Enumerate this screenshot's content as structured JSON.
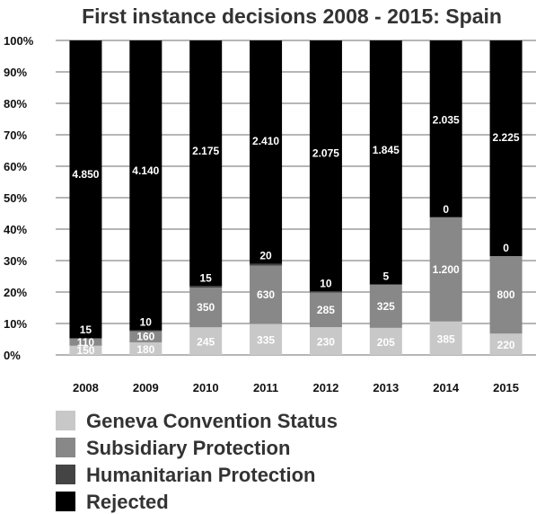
{
  "chart_data": {
    "type": "bar",
    "stacked": true,
    "normalized": true,
    "title": "First instance decisions 2008 - 2015: Spain",
    "xlabel": "",
    "ylabel": "",
    "ylim": [
      0,
      100
    ],
    "yticks": [
      "0%",
      "10%",
      "20%",
      "30%",
      "40%",
      "50%",
      "60%",
      "70%",
      "80%",
      "90%",
      "100%"
    ],
    "categories": [
      "2008",
      "2009",
      "2010",
      "2011",
      "2012",
      "2013",
      "2014",
      "2015"
    ],
    "grid": true,
    "legend_position": "bottom",
    "series": [
      {
        "name": "Geneva Convention Status",
        "color": "#c8c8c8",
        "values": [
          150,
          180,
          245,
          335,
          230,
          205,
          385,
          220
        ],
        "labels": [
          "150",
          "180",
          "245",
          "335",
          "230",
          "205",
          "385",
          "220"
        ]
      },
      {
        "name": "Subsidiary Protection",
        "color": "#888888",
        "values": [
          110,
          160,
          350,
          630,
          285,
          325,
          1200,
          800
        ],
        "labels": [
          "110",
          "160",
          "350",
          "630",
          "285",
          "325",
          "1.200",
          "800"
        ]
      },
      {
        "name": "Humanitarian Protection",
        "color": "#444444",
        "values": [
          15,
          10,
          15,
          20,
          10,
          5,
          0,
          0
        ],
        "labels": [
          "15",
          "10",
          "15",
          "20",
          "10",
          "5",
          "0",
          "0"
        ]
      },
      {
        "name": "Rejected",
        "color": "#000000",
        "values": [
          4850,
          4140,
          2175,
          2410,
          2075,
          1845,
          2035,
          2225
        ],
        "labels": [
          "4.850",
          "4.140",
          "2.175",
          "2.410",
          "2.075",
          "1.845",
          "2.035",
          "2.225"
        ]
      }
    ]
  }
}
